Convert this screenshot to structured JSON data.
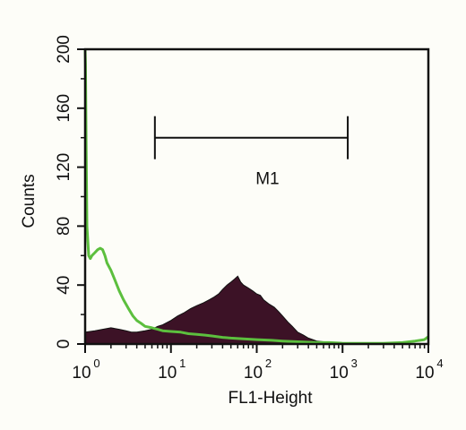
{
  "chart_data": {
    "type": "area",
    "xlabel": "FL1-Height",
    "ylabel": "Counts",
    "xscale": "log",
    "xlim": [
      1,
      10000
    ],
    "ylim": [
      0,
      200
    ],
    "grid": false,
    "x_ticks": [
      {
        "value": 1,
        "base": "10",
        "exp": "0"
      },
      {
        "value": 10,
        "base": "10",
        "exp": "1"
      },
      {
        "value": 100,
        "base": "10",
        "exp": "2"
      },
      {
        "value": 1000,
        "base": "10",
        "exp": "3"
      },
      {
        "value": 10000,
        "base": "10",
        "exp": "4"
      }
    ],
    "y_ticks": [
      {
        "value": 0,
        "label": "0"
      },
      {
        "value": 40,
        "label": "40"
      },
      {
        "value": 80,
        "label": "80"
      },
      {
        "value": 120,
        "label": "120"
      },
      {
        "value": 160,
        "label": "160"
      },
      {
        "value": 200,
        "label": "200"
      }
    ],
    "marker": {
      "label": "M1",
      "x_start": 6.5,
      "x_end": 1150,
      "y": 140
    },
    "series": [
      {
        "color": "#3c1226",
        "style": "filled",
        "x": [
          1,
          1.3,
          1.6,
          2,
          2.5,
          3,
          3.5,
          4,
          5,
          6,
          7,
          8,
          10,
          12,
          14,
          17,
          20,
          24,
          28,
          32,
          36,
          40,
          45,
          50,
          55,
          60,
          65,
          70,
          80,
          90,
          100,
          110,
          120,
          140,
          160,
          180,
          200,
          230,
          260,
          300,
          350,
          400,
          450,
          500,
          600,
          700,
          800,
          1000,
          1500,
          2000,
          3000,
          5000,
          7000,
          10000
        ],
        "y": [
          8,
          9,
          10,
          11,
          10,
          9,
          8,
          8,
          9,
          10,
          12,
          13,
          16,
          19,
          21,
          24,
          26,
          28,
          30,
          32,
          34,
          37,
          40,
          42,
          44,
          46,
          42,
          40,
          38,
          36,
          34,
          33,
          30,
          27,
          25,
          22,
          19,
          15,
          12,
          8,
          6,
          4,
          3,
          2,
          1.5,
          1,
          1,
          0.5,
          0.5,
          0.5,
          0,
          0,
          0,
          0
        ]
      },
      {
        "color": "#5cbf3e",
        "style": "line",
        "x": [
          1,
          1.01,
          1.03,
          1.05,
          1.1,
          1.15,
          1.2,
          1.3,
          1.4,
          1.5,
          1.6,
          1.7,
          1.8,
          2,
          2.2,
          2.5,
          2.8,
          3.2,
          3.6,
          4,
          4.5,
          5,
          6,
          7,
          8,
          10,
          13,
          16,
          20,
          25,
          30,
          40,
          50,
          70,
          100,
          150,
          200,
          300,
          500,
          700,
          1000,
          2000,
          3000,
          5000,
          7000,
          9000,
          10000
        ],
        "y": [
          200,
          190,
          130,
          80,
          60,
          58,
          60,
          62,
          64,
          65,
          64,
          60,
          55,
          50,
          44,
          36,
          30,
          24,
          19,
          16,
          14,
          12,
          11,
          10,
          9,
          8.5,
          8,
          7,
          6.5,
          6,
          5.5,
          4.5,
          4,
          3.5,
          3,
          2.5,
          2,
          1.5,
          1,
          1,
          0.5,
          0.5,
          0.5,
          1,
          2,
          3,
          5
        ]
      }
    ]
  }
}
